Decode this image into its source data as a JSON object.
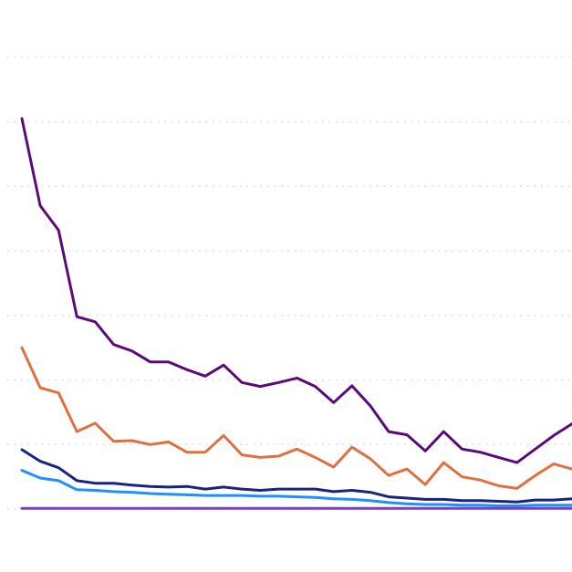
{
  "chart_data": {
    "type": "line",
    "title": "",
    "xlabel": "",
    "ylabel": "",
    "grid": true,
    "x": [
      1,
      2,
      3,
      4,
      5,
      6,
      7,
      8,
      9,
      10,
      11,
      12,
      13,
      14,
      15,
      16,
      17,
      18,
      19,
      20,
      21,
      22,
      23,
      24,
      25,
      26,
      27,
      28,
      29,
      30,
      31
    ],
    "xlim": [
      1,
      31
    ],
    "ylim": [
      0,
      7
    ],
    "series": [
      {
        "color": "#5c0a7a",
        "values": [
          6.05,
          4.7,
          4.32,
          2.98,
          2.9,
          2.55,
          2.45,
          2.28,
          2.28,
          2.16,
          2.06,
          2.23,
          1.96,
          1.9,
          1.96,
          2.03,
          1.9,
          1.65,
          1.91,
          1.6,
          1.2,
          1.15,
          0.9,
          1.2,
          0.93,
          0.88,
          0.8,
          0.72,
          0.93,
          1.14,
          1.32
        ]
      },
      {
        "color": "#e07040",
        "values": [
          2.5,
          1.88,
          1.8,
          1.2,
          1.33,
          1.05,
          1.06,
          1.0,
          1.04,
          0.88,
          0.88,
          1.14,
          0.84,
          0.8,
          0.82,
          0.93,
          0.8,
          0.65,
          0.96,
          0.78,
          0.52,
          0.62,
          0.38,
          0.72,
          0.5,
          0.45,
          0.36,
          0.32,
          0.52,
          0.7,
          0.62
        ]
      },
      {
        "color": "#1a237e",
        "values": [
          0.92,
          0.74,
          0.64,
          0.44,
          0.4,
          0.4,
          0.37,
          0.35,
          0.34,
          0.35,
          0.31,
          0.34,
          0.31,
          0.29,
          0.31,
          0.31,
          0.31,
          0.27,
          0.29,
          0.26,
          0.19,
          0.17,
          0.15,
          0.15,
          0.13,
          0.13,
          0.12,
          0.11,
          0.14,
          0.14,
          0.16
        ]
      },
      {
        "color": "#1e90ff",
        "values": [
          0.6,
          0.48,
          0.44,
          0.3,
          0.29,
          0.27,
          0.26,
          0.24,
          0.23,
          0.22,
          0.21,
          0.21,
          0.21,
          0.2,
          0.2,
          0.19,
          0.18,
          0.16,
          0.15,
          0.13,
          0.1,
          0.08,
          0.07,
          0.07,
          0.06,
          0.06,
          0.05,
          0.05,
          0.06,
          0.06,
          0.06
        ]
      },
      {
        "color": "#7b3fc4",
        "values": [
          0.01,
          0.01,
          0.01,
          0.01,
          0.01,
          0.01,
          0.01,
          0.01,
          0.01,
          0.01,
          0.01,
          0.01,
          0.01,
          0.01,
          0.01,
          0.01,
          0.01,
          0.01,
          0.01,
          0.01,
          0.01,
          0.01,
          0.01,
          0.01,
          0.01,
          0.01,
          0.01,
          0.01,
          0.01,
          0.01,
          0.01
        ]
      }
    ]
  }
}
